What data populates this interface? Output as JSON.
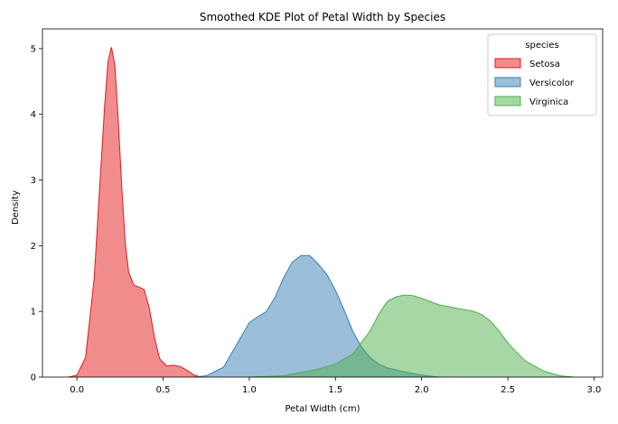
{
  "chart_data": {
    "type": "area",
    "title": "Smoothed KDE Plot of Petal Width by Species",
    "xlabel": "Petal Width (cm)",
    "ylabel": "Density",
    "xlim": [
      -0.2,
      3.05
    ],
    "ylim": [
      0,
      5.3
    ],
    "xticks": [
      0.0,
      0.5,
      1.0,
      1.5,
      2.0,
      2.5,
      3.0
    ],
    "xtick_labels": [
      "0.0",
      "0.5",
      "1.0",
      "1.5",
      "2.0",
      "2.5",
      "3.0"
    ],
    "yticks": [
      0,
      1,
      2,
      3,
      4,
      5
    ],
    "ytick_labels": [
      "0",
      "1",
      "2",
      "3",
      "4",
      "5"
    ],
    "grid": false,
    "legend": {
      "title": "species",
      "position": "top-right"
    },
    "series": [
      {
        "name": "Setosa",
        "color": "#e41a1c",
        "x": [
          -0.05,
          0.0,
          0.05,
          0.1,
          0.13,
          0.16,
          0.18,
          0.2,
          0.22,
          0.24,
          0.26,
          0.28,
          0.3,
          0.33,
          0.36,
          0.39,
          0.42,
          0.45,
          0.48,
          0.52,
          0.56,
          0.6,
          0.64,
          0.68,
          0.72
        ],
        "y": [
          0.0,
          0.03,
          0.3,
          1.5,
          2.8,
          4.1,
          4.8,
          5.02,
          4.75,
          3.9,
          2.9,
          2.05,
          1.6,
          1.4,
          1.37,
          1.33,
          1.05,
          0.6,
          0.28,
          0.17,
          0.18,
          0.16,
          0.1,
          0.03,
          0.0
        ]
      },
      {
        "name": "Versicolor",
        "color": "#377eb8",
        "x": [
          0.68,
          0.75,
          0.85,
          0.95,
          1.0,
          1.05,
          1.1,
          1.15,
          1.2,
          1.25,
          1.3,
          1.35,
          1.4,
          1.45,
          1.5,
          1.55,
          1.6,
          1.65,
          1.7,
          1.75,
          1.8,
          1.9,
          2.0,
          2.1
        ],
        "y": [
          0.0,
          0.02,
          0.15,
          0.6,
          0.83,
          0.92,
          1.0,
          1.22,
          1.52,
          1.75,
          1.85,
          1.85,
          1.72,
          1.56,
          1.32,
          1.02,
          0.7,
          0.46,
          0.3,
          0.2,
          0.14,
          0.08,
          0.03,
          0.0
        ]
      },
      {
        "name": "Virginica",
        "color": "#4daf4a",
        "x": [
          1.0,
          1.2,
          1.4,
          1.5,
          1.6,
          1.7,
          1.75,
          1.8,
          1.85,
          1.9,
          1.95,
          2.0,
          2.1,
          2.2,
          2.3,
          2.35,
          2.4,
          2.45,
          2.5,
          2.55,
          2.6,
          2.7,
          2.8,
          2.88
        ],
        "y": [
          0.0,
          0.02,
          0.12,
          0.2,
          0.35,
          0.7,
          0.95,
          1.15,
          1.22,
          1.25,
          1.24,
          1.2,
          1.1,
          1.05,
          1.0,
          0.95,
          0.85,
          0.7,
          0.52,
          0.38,
          0.25,
          0.1,
          0.02,
          0.0
        ]
      }
    ]
  }
}
